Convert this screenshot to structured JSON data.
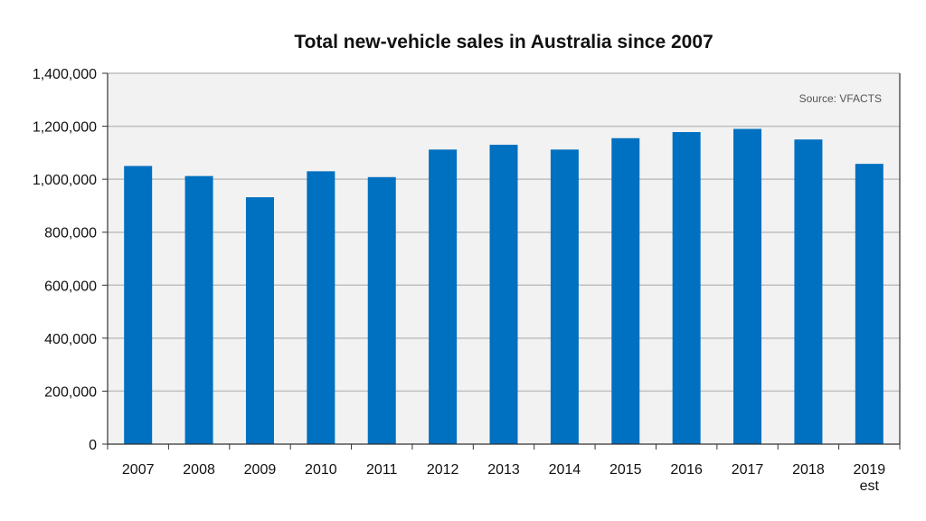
{
  "chart_data": {
    "type": "bar",
    "title": "Total new-vehicle sales in Australia since 2007",
    "source_note": "Source: VFACTS",
    "categories": [
      "2007",
      "2008",
      "2009",
      "2010",
      "2011",
      "2012",
      "2013",
      "2014",
      "2015",
      "2016",
      "2017",
      "2018",
      "2019"
    ],
    "category_sublabels": [
      "",
      "",
      "",
      "",
      "",
      "",
      "",
      "",
      "",
      "",
      "",
      "",
      "est"
    ],
    "values": [
      1050000,
      1012000,
      932000,
      1030000,
      1008000,
      1112000,
      1130000,
      1112000,
      1155000,
      1178000,
      1190000,
      1150000,
      1058000
    ],
    "y_ticks": [
      0,
      200000,
      400000,
      600000,
      800000,
      1000000,
      1200000,
      1400000
    ],
    "y_tick_labels": [
      "0",
      "200,000",
      "400,000",
      "600,000",
      "800,000",
      "1,000,000",
      "1,200,000",
      "1,400,000"
    ],
    "ylim": [
      0,
      1400000
    ],
    "xlabel": "",
    "ylabel": "",
    "grid": true,
    "bar_color": "#0070c0",
    "plot_background": "#f2f2f2",
    "grid_color": "#bfbfbf"
  }
}
